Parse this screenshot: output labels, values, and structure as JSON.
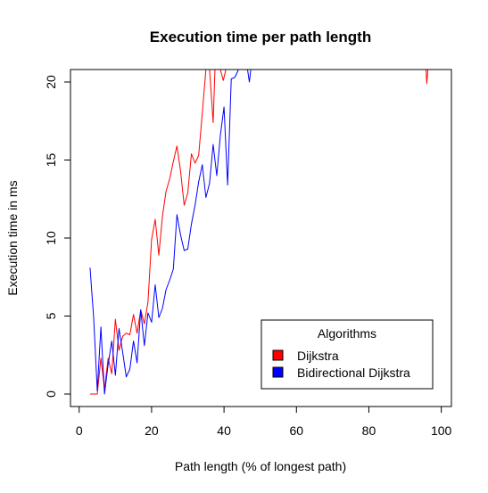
{
  "chart_data": {
    "type": "line",
    "title": "Execution time per path length",
    "xlabel": "Path length (% of longest path)",
    "ylabel": "Execution time in ms",
    "xlim": [
      -2.4,
      102.8
    ],
    "ylim": [
      -0.8,
      20.8
    ],
    "xticks": [
      0,
      20,
      40,
      60,
      80,
      100
    ],
    "yticks": [
      0,
      5,
      10,
      15,
      20
    ],
    "xtick_labels": [
      "0",
      "20",
      "40",
      "60",
      "80",
      "100"
    ],
    "ytick_labels": [
      "0",
      "5",
      "10",
      "15",
      "20"
    ],
    "grid": false,
    "legend": {
      "title": "Algorithms",
      "placement": "bottom-right",
      "entries": [
        {
          "label": "Dijkstra",
          "color": "#ff0000"
        },
        {
          "label": "Bidirectional Dijkstra",
          "color": "#0000ff"
        }
      ]
    },
    "series": [
      {
        "name": "Dijkstra",
        "color": "#ff0000",
        "segments": [
          [
            [
              3,
              0
            ],
            [
              4,
              0
            ],
            [
              5,
              0
            ],
            [
              6,
              2.3
            ],
            [
              7,
              0.3
            ],
            [
              8,
              2.3
            ],
            [
              9,
              1.3
            ],
            [
              10,
              4.8
            ],
            [
              11,
              2.8
            ],
            [
              12,
              3.7
            ],
            [
              13,
              3.9
            ],
            [
              14,
              3.8
            ],
            [
              15,
              5.1
            ],
            [
              16,
              3.9
            ],
            [
              17,
              5.4
            ],
            [
              18,
              4.5
            ],
            [
              19,
              5.9
            ],
            [
              20,
              9.9
            ],
            [
              21,
              11.2
            ],
            [
              22,
              8.9
            ],
            [
              23,
              11.4
            ],
            [
              24,
              13.0
            ],
            [
              25,
              13.8
            ],
            [
              26,
              14.9
            ],
            [
              27,
              15.9
            ],
            [
              28,
              14.3
            ],
            [
              29,
              12.1
            ],
            [
              30,
              12.9
            ],
            [
              31,
              15.4
            ],
            [
              32,
              14.8
            ],
            [
              33,
              15.3
            ],
            [
              34,
              18.0
            ],
            [
              35,
              20.8
            ]
          ],
          [
            [
              36,
              20.8
            ],
            [
              36.4,
              19.5
            ],
            [
              37,
              17.4
            ],
            [
              37.5,
              20.8
            ]
          ],
          [
            [
              39,
              20.8
            ],
            [
              39.8,
              20.1
            ],
            [
              40.5,
              20.8
            ]
          ],
          [
            [
              95.8,
              20.8
            ],
            [
              96,
              19.9
            ],
            [
              96.3,
              20.8
            ]
          ]
        ]
      },
      {
        "name": "Bidirectional Dijkstra",
        "color": "#0000ff",
        "segments": [
          [
            [
              3,
              8.1
            ],
            [
              4,
              4.9
            ],
            [
              5,
              0.2
            ],
            [
              6,
              4.3
            ],
            [
              7,
              0
            ],
            [
              8,
              1.9
            ],
            [
              9,
              3.4
            ],
            [
              10,
              1.2
            ],
            [
              11,
              4.2
            ],
            [
              12,
              2.7
            ],
            [
              13,
              1.1
            ],
            [
              14,
              1.6
            ],
            [
              15,
              3.4
            ],
            [
              16,
              2.0
            ],
            [
              17,
              5.4
            ],
            [
              18,
              3.1
            ],
            [
              19,
              5.2
            ],
            [
              20,
              4.6
            ],
            [
              21,
              7.0
            ],
            [
              22,
              4.9
            ],
            [
              23,
              5.5
            ],
            [
              24,
              6.7
            ],
            [
              25,
              7.3
            ],
            [
              26,
              8.0
            ],
            [
              27,
              11.5
            ],
            [
              28,
              10.2
            ],
            [
              29,
              9.2
            ],
            [
              30,
              9.3
            ],
            [
              31,
              10.9
            ],
            [
              32,
              12.1
            ],
            [
              33,
              13.6
            ],
            [
              34,
              14.7
            ],
            [
              35,
              12.6
            ],
            [
              36,
              13.5
            ],
            [
              37,
              16.0
            ],
            [
              38,
              14.0
            ],
            [
              39,
              16.6
            ],
            [
              40,
              18.4
            ],
            [
              41,
              13.4
            ],
            [
              42,
              20.2
            ],
            [
              43,
              20.3
            ],
            [
              44,
              20.8
            ]
          ],
          [
            [
              46.5,
              20.8
            ],
            [
              47,
              20.0
            ],
            [
              47.4,
              20.8
            ]
          ]
        ]
      }
    ]
  }
}
